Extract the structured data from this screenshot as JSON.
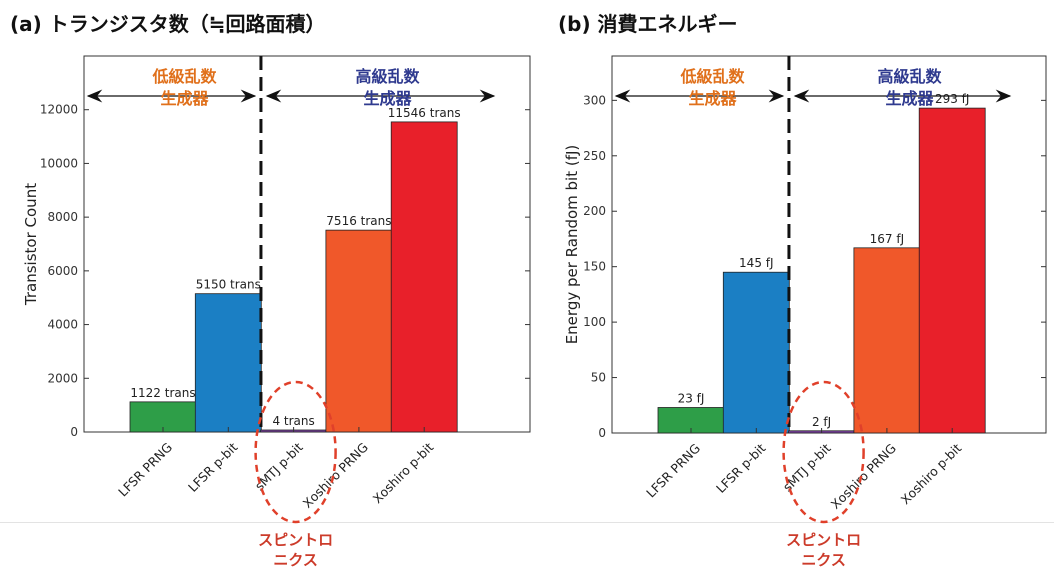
{
  "panels": [
    {
      "id": "transistors",
      "panel_title": "(a) トランジスタ数（≒回路面積）",
      "low_label": [
        "低級乱数",
        "生成器"
      ],
      "high_label": [
        "高級乱数",
        "生成器"
      ],
      "spintronics_label": [
        "スピントロ",
        "ニクス"
      ],
      "chart_data": {
        "type": "bar",
        "title": "",
        "xlabel": "",
        "ylabel": "Transistor Count",
        "ylim": [
          0,
          14000
        ],
        "yticks": [
          0,
          2000,
          4000,
          6000,
          8000,
          10000,
          12000
        ],
        "categories": [
          "LFSR PRNG",
          "LFSR p-bit",
          "sMTJ p-bit",
          "Xoshiro PRNG",
          "Xoshiro p-bit"
        ],
        "values": [
          1122,
          5150,
          4,
          7516,
          11546
        ],
        "data_labels": [
          "1122 trans",
          "5150 trans",
          "4 trans",
          "7516 trans",
          "11546 trans"
        ],
        "colors": [
          "#2e9e48",
          "#1b7fc4",
          "#7b3fa0",
          "#f0582a",
          "#e8202a"
        ],
        "grid": false,
        "divider_after_index": 1,
        "highlight_index": 2
      }
    },
    {
      "id": "energy",
      "panel_title": "(b) 消費エネルギー",
      "low_label": [
        "低級乱数",
        "生成器"
      ],
      "high_label": [
        "高級乱数",
        "生成器"
      ],
      "spintronics_label": [
        "スピントロ",
        "ニクス"
      ],
      "chart_data": {
        "type": "bar",
        "title": "",
        "xlabel": "",
        "ylabel": "Energy per Random bit (fJ)",
        "ylim": [
          0,
          340
        ],
        "yticks": [
          0,
          50,
          100,
          150,
          200,
          250,
          300
        ],
        "categories": [
          "LFSR PRNG",
          "LFSR p-bit",
          "sMTJ p-bit",
          "Xoshiro PRNG",
          "Xoshiro p-bit"
        ],
        "values": [
          23,
          145,
          2,
          167,
          293
        ],
        "data_labels": [
          "23 fJ",
          "145 fJ",
          "2 fJ",
          "167 fJ",
          "293 fJ"
        ],
        "colors": [
          "#2e9e48",
          "#1b7fc4",
          "#7b3fa0",
          "#f0582a",
          "#e8202a"
        ],
        "grid": false,
        "divider_after_index": 1,
        "highlight_index": 2
      }
    }
  ],
  "style": {
    "low_label_color": "#e0701b",
    "high_label_color": "#2f3a8f",
    "spintronics_color": "#cc3b2a",
    "circle_color": "#e0402a",
    "axis_color": "#333333",
    "tick_text_color": "#333333"
  }
}
